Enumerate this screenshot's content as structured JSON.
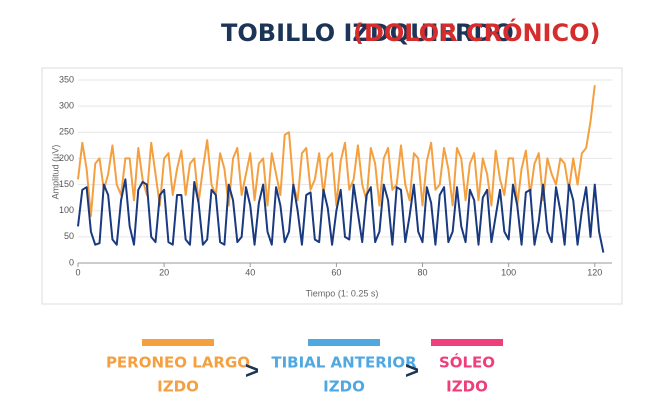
{
  "chart_data": {
    "type": "line",
    "title": "TOBILLO IZDQUIERDO",
    "title_highlight": "(DOLOR CRÓNICO)",
    "y_label": "Amplitud (µV)",
    "x_label": "Tiempo (1: 0.25 s)",
    "xlim": [
      0,
      124
    ],
    "xticks": [
      0,
      20,
      40,
      60,
      80,
      100,
      120
    ],
    "ylim": [
      0,
      350
    ],
    "yticks": [
      0,
      50,
      100,
      150,
      200,
      250,
      300,
      350
    ],
    "grid": true,
    "x": [
      0,
      1,
      2,
      3,
      4,
      5,
      6,
      7,
      8,
      9,
      10,
      11,
      12,
      13,
      14,
      15,
      16,
      17,
      18,
      19,
      20,
      21,
      22,
      23,
      24,
      25,
      26,
      27,
      28,
      29,
      30,
      31,
      32,
      33,
      34,
      35,
      36,
      37,
      38,
      39,
      40,
      41,
      42,
      43,
      44,
      45,
      46,
      47,
      48,
      49,
      50,
      51,
      52,
      53,
      54,
      55,
      56,
      57,
      58,
      59,
      60,
      61,
      62,
      63,
      64,
      65,
      66,
      67,
      68,
      69,
      70,
      71,
      72,
      73,
      74,
      75,
      76,
      77,
      78,
      79,
      80,
      81,
      82,
      83,
      84,
      85,
      86,
      87,
      88,
      89,
      90,
      91,
      92,
      93,
      94,
      95,
      96,
      97,
      98,
      99,
      100,
      101,
      102,
      103,
      104,
      105,
      106,
      107,
      108,
      109,
      110,
      111,
      112,
      113,
      114,
      115,
      116,
      117,
      118,
      119,
      120,
      121,
      122
    ],
    "series": [
      {
        "color": "#f4a040",
        "values": [
          160,
          230,
          180,
          90,
          190,
          200,
          140,
          170,
          225,
          150,
          130,
          200,
          200,
          120,
          220,
          160,
          130,
          230,
          170,
          110,
          200,
          210,
          130,
          180,
          215,
          130,
          190,
          200,
          115,
          180,
          235,
          150,
          130,
          210,
          180,
          110,
          200,
          220,
          130,
          170,
          210,
          120,
          190,
          200,
          110,
          210,
          170,
          130,
          245,
          250,
          150,
          120,
          210,
          220,
          140,
          160,
          210,
          130,
          200,
          210,
          110,
          195,
          230,
          140,
          160,
          225,
          150,
          120,
          220,
          190,
          110,
          200,
          220,
          140,
          150,
          225,
          150,
          120,
          210,
          200,
          110,
          195,
          230,
          140,
          150,
          220,
          180,
          110,
          220,
          200,
          120,
          190,
          210,
          120,
          200,
          170,
          110,
          215,
          160,
          130,
          200,
          200,
          110,
          180,
          215,
          130,
          190,
          210,
          120,
          200,
          170,
          150,
          200,
          190,
          140,
          200,
          150,
          210,
          220,
          270,
          340,
          null,
          null
        ]
      },
      {
        "color": "#1a3a80",
        "values": [
          70,
          140,
          145,
          60,
          35,
          38,
          150,
          130,
          45,
          35,
          120,
          160,
          70,
          35,
          140,
          155,
          150,
          50,
          40,
          130,
          140,
          40,
          35,
          130,
          130,
          45,
          35,
          155,
          115,
          35,
          45,
          140,
          130,
          40,
          35,
          150,
          120,
          40,
          50,
          145,
          110,
          35,
          115,
          150,
          60,
          35,
          145,
          110,
          40,
          60,
          150,
          100,
          35,
          130,
          135,
          45,
          40,
          140,
          105,
          35,
          100,
          140,
          50,
          45,
          150,
          95,
          40,
          130,
          145,
          40,
          60,
          150,
          120,
          35,
          145,
          140,
          40,
          90,
          150,
          60,
          40,
          145,
          115,
          35,
          130,
          145,
          40,
          60,
          145,
          70,
          40,
          140,
          120,
          35,
          125,
          140,
          40,
          90,
          140,
          60,
          45,
          150,
          110,
          35,
          135,
          140,
          35,
          80,
          150,
          60,
          40,
          145,
          100,
          35,
          150,
          120,
          35,
          100,
          145,
          50,
          150,
          60,
          20
        ]
      }
    ]
  },
  "ranking": {
    "separator": ">",
    "items": [
      {
        "name": "PERONEO LARGO",
        "side": "IZDO",
        "color": "#f4a040"
      },
      {
        "name": "TIBIAL ANTERIOR",
        "side": "IZDO",
        "color": "#4fa8e0"
      },
      {
        "name": "SÓLEO",
        "side": "IZDO",
        "color": "#ee3f7c"
      }
    ]
  }
}
